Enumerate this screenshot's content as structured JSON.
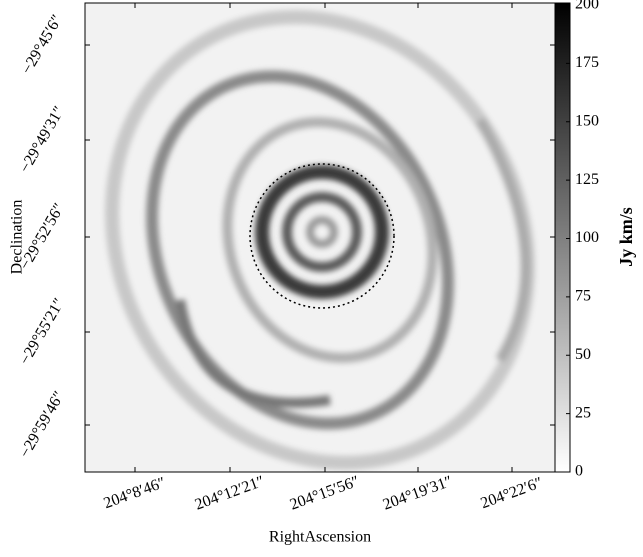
{
  "chart_data": {
    "type": "image",
    "xlabel": "RightAscension",
    "ylabel": "Declination",
    "xtick_labels": [
      "204°8′46″",
      "204°12′21″",
      "204°15′56″",
      "204°19′31″",
      "204°22′6″"
    ],
    "ytick_labels": [
      "−29°45′6″",
      "−29°49′31″",
      "−29°52′56″",
      "−29°55′21″",
      "−29°59′46″"
    ],
    "colorbar": {
      "label": "Jy km/s",
      "lim": [
        0,
        200
      ],
      "ticks": [
        0,
        25,
        50,
        75,
        100,
        125,
        150,
        175,
        200
      ],
      "colors": [
        "#ffffff",
        "#000000"
      ]
    }
  }
}
